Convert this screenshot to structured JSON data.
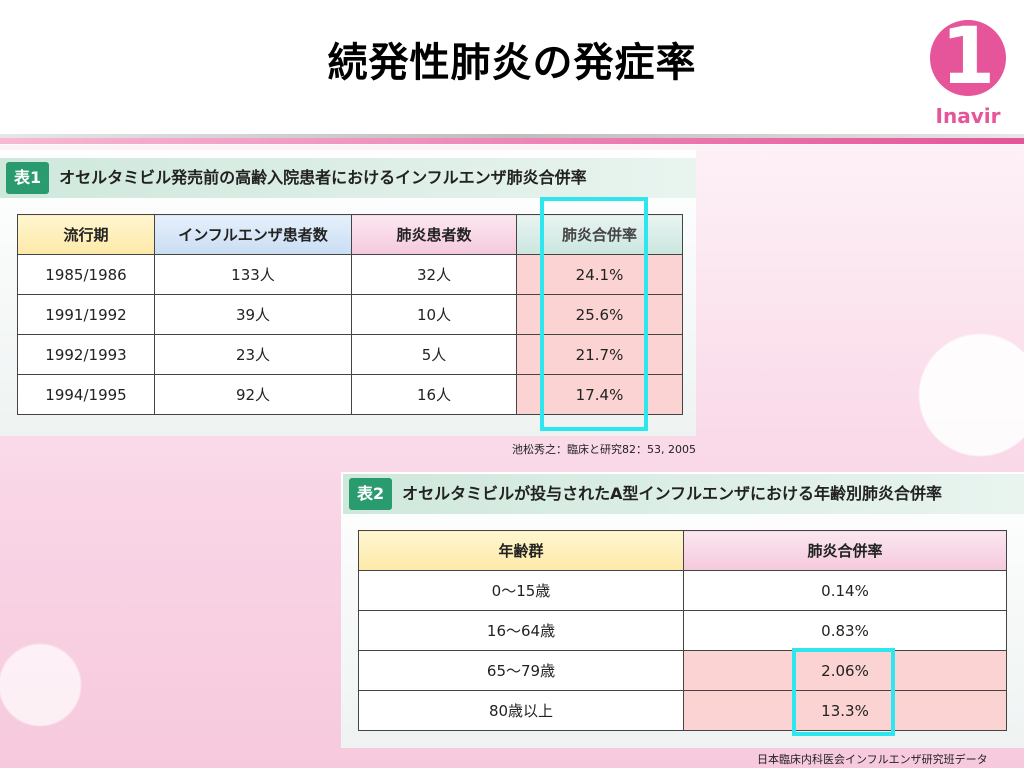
{
  "title": "続発性肺炎の発症率",
  "logo": {
    "text": "Inavir",
    "numeral": "1",
    "color": "#e6549a"
  },
  "table1": {
    "tag": "表1",
    "caption": "オセルタミビル発売前の高齢入院患者におけるインフルエンザ肺炎合併率",
    "headers": [
      "流行期",
      "インフルエンザ患者数",
      "肺炎患者数",
      "肺炎合併率"
    ],
    "rows": [
      [
        "1985/1986",
        "133人",
        "32人",
        "24.1%"
      ],
      [
        "1991/1992",
        "39人",
        "10人",
        "25.6%"
      ],
      [
        "1992/1993",
        "23人",
        "5人",
        "21.7%"
      ],
      [
        "1994/1995",
        "92人",
        "16人",
        "17.4%"
      ]
    ],
    "source": "池松秀之：臨床と研究82：53, 2005"
  },
  "table2": {
    "tag": "表2",
    "caption": "オセルタミビルが投与されたA型インフルエンザにおける年齢別肺炎合併率",
    "headers": [
      "年齢群",
      "肺炎合併率"
    ],
    "rows": [
      [
        "0～15歳",
        "0.14%"
      ],
      [
        "16～64歳",
        "0.83%"
      ],
      [
        "65～79歳",
        "2.06%"
      ],
      [
        "80歳以上",
        "13.3%"
      ]
    ],
    "source": "日本臨床内科医会インフルエンザ研究班データ"
  },
  "colors": {
    "highlight": "#2ee6ee",
    "accent": "#e6549a",
    "tag": "#2a9a6f"
  }
}
